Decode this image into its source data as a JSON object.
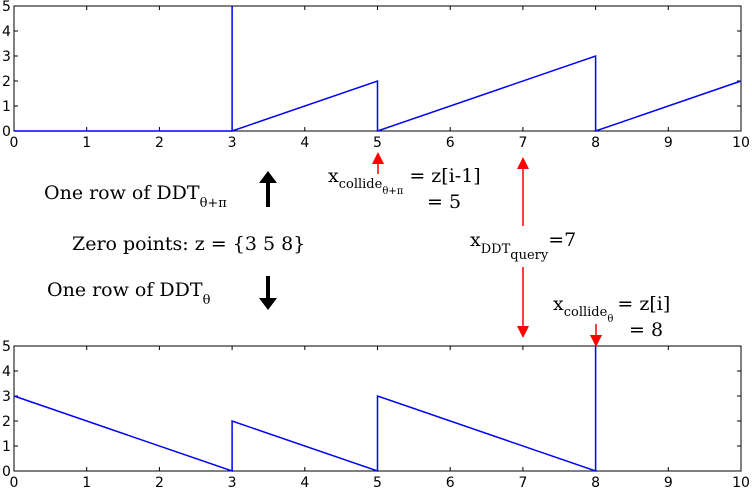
{
  "chart_data": [
    {
      "type": "line",
      "panel": "top",
      "x": [
        0,
        3,
        3,
        3,
        5,
        5,
        8,
        8,
        10
      ],
      "y": [
        0,
        0,
        5,
        0,
        2,
        0,
        3,
        0,
        2
      ],
      "xlim": [
        0,
        10
      ],
      "ylim": [
        0,
        5
      ],
      "xticks": [
        "0",
        "1",
        "2",
        "3",
        "4",
        "5",
        "6",
        "7",
        "8",
        "9",
        "10"
      ],
      "yticks": [
        "0",
        "1",
        "2",
        "3",
        "4",
        "5"
      ],
      "color": "#0000ff"
    },
    {
      "type": "line",
      "panel": "bottom",
      "x": [
        0,
        3,
        3,
        5,
        5,
        8,
        8
      ],
      "y": [
        3,
        0,
        2,
        0,
        3,
        0,
        5
      ],
      "xlim": [
        0,
        10
      ],
      "ylim": [
        0,
        5
      ],
      "xticks": [
        "0",
        "1",
        "2",
        "3",
        "4",
        "5",
        "6",
        "7",
        "8",
        "9",
        "10"
      ],
      "yticks": [
        "0",
        "1",
        "2",
        "3",
        "4",
        "5"
      ],
      "color": "#0000ff"
    }
  ],
  "labels": {
    "top_row_main": "One row of DDT",
    "top_row_sub": "θ+π",
    "zero_points": "Zero points: z = {3 5 8}",
    "bottom_row_main": "One row of DDT",
    "bottom_row_sub": "θ",
    "collide_pi_x": "x",
    "collide_pi_sub": "collide",
    "collide_pi_subsub": "θ+π",
    "collide_pi_eq": "= z[i-1]",
    "collide_pi_val": "= 5",
    "query_x": "x",
    "query_sub": "DDT",
    "query_subsub": "query",
    "query_val": "=7",
    "collide_x": "x",
    "collide_sub": "collide",
    "collide_subsub": "θ",
    "collide_eq": "= z[i]",
    "collide_val": "= 8"
  },
  "colors": {
    "series": "#0000ff",
    "annotation": "#ff0000",
    "axes": "#000000"
  }
}
